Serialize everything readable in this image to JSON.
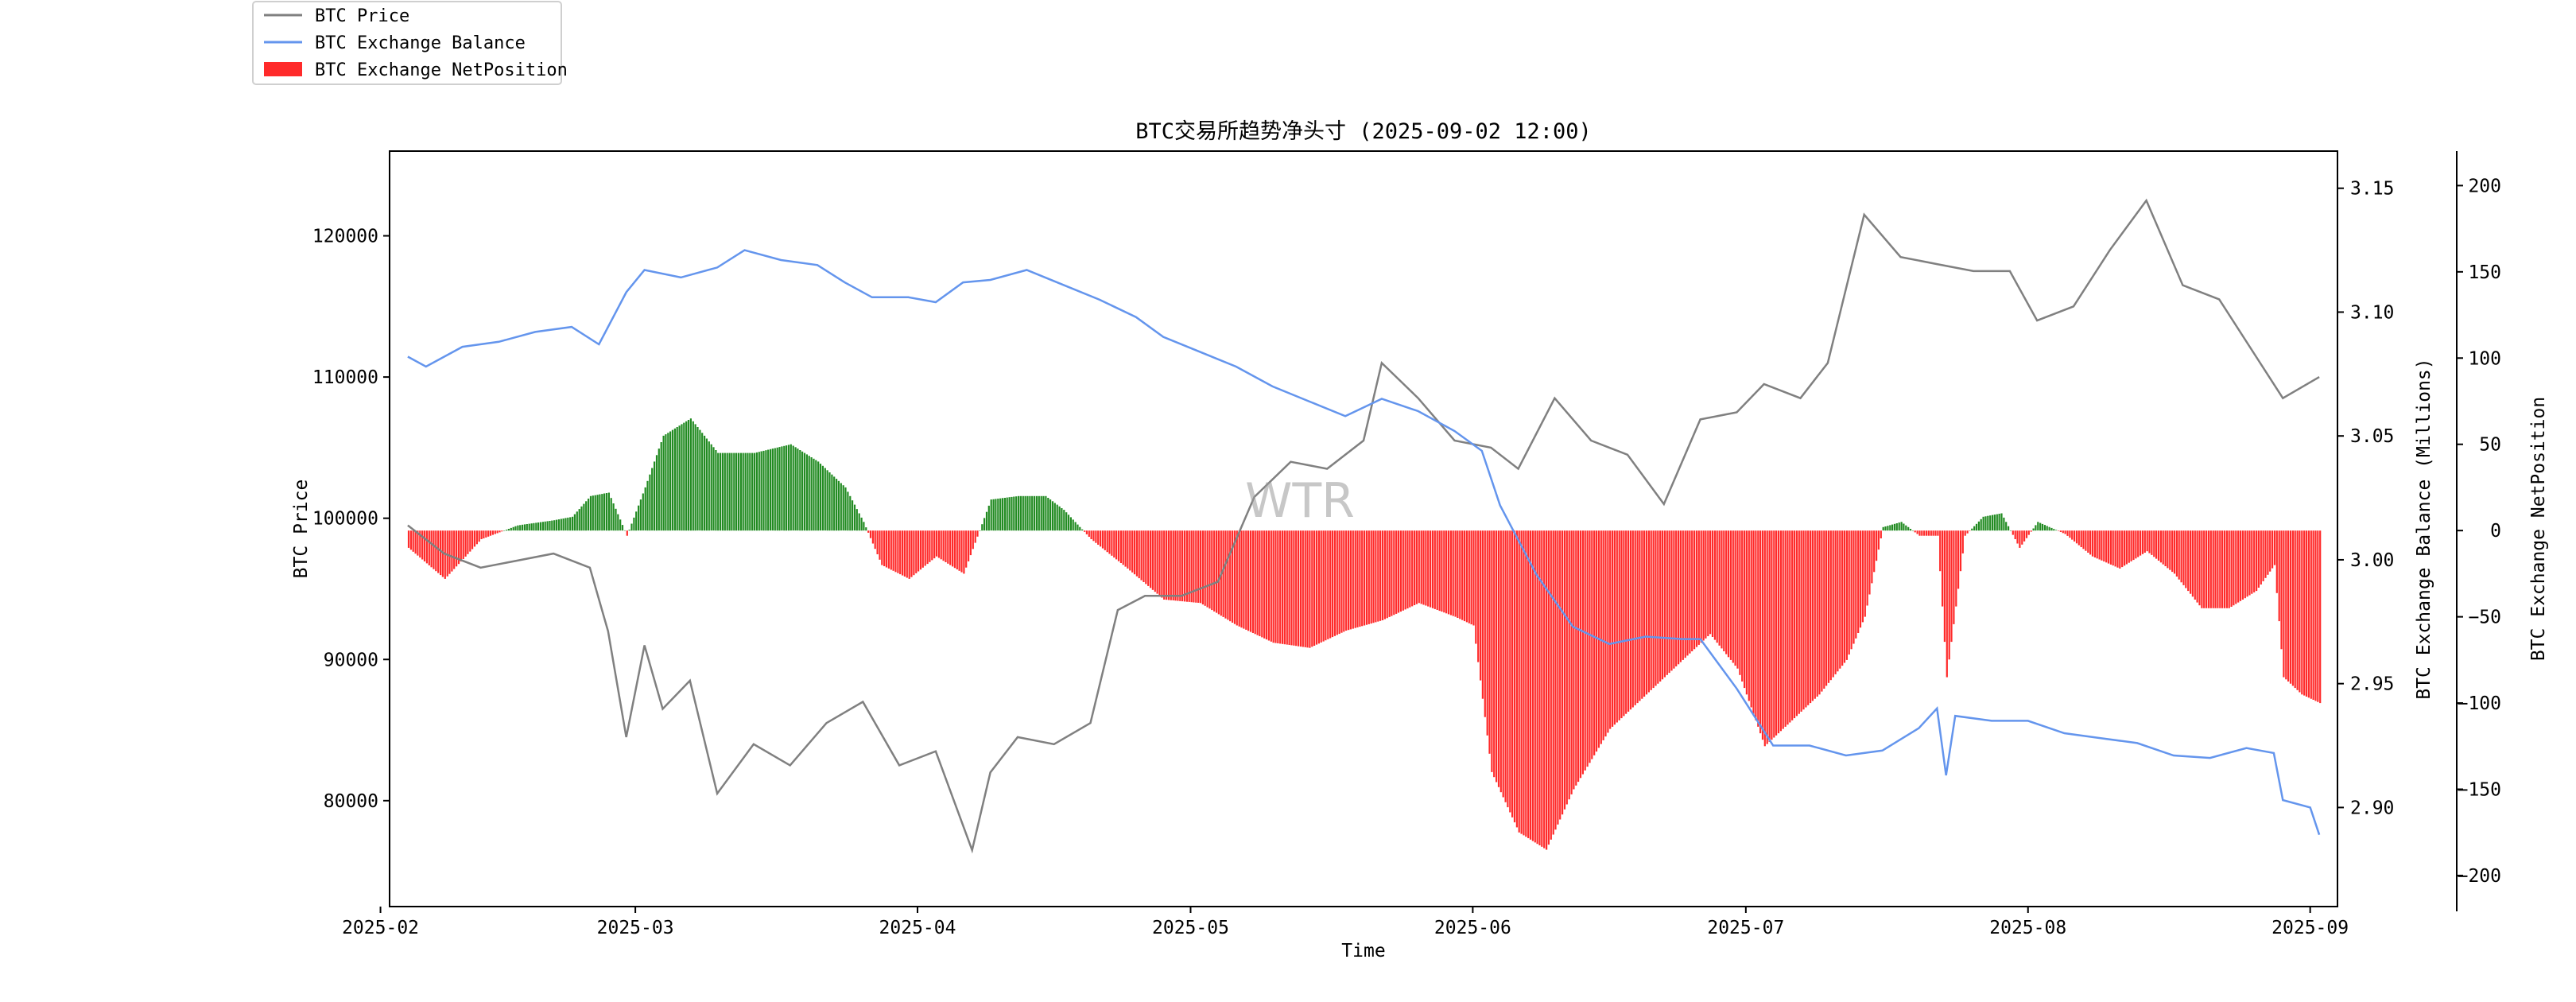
{
  "chart_data": {
    "type": "line",
    "title": "BTC交易所趋势净头寸 (2025-09-02 12:00)",
    "xlabel": "Time",
    "ylabel_left": "BTC Price",
    "ylabel_right": "BTC Exchange Balance (Millions)",
    "ylabel_right2": "BTC Exchange NetPosition",
    "watermark": "WTR",
    "grid": false,
    "legend_position": "top-left (outside plot)",
    "x_range": [
      "2025-02-04",
      "2025-09-02"
    ],
    "x_ticks": [
      "2025-02",
      "2025-03",
      "2025-04",
      "2025-05",
      "2025-06",
      "2025-07",
      "2025-08",
      "2025-09"
    ],
    "y_left_range": [
      72500,
      126000
    ],
    "y_left_ticks": [
      "80000",
      "90000",
      "100000",
      "110000",
      "120000"
    ],
    "y_right_range": [
      2.86,
      3.165
    ],
    "y_right_ticks": [
      "2.90",
      "2.95",
      "3.00",
      "3.05",
      "3.10",
      "3.15"
    ],
    "y_right2_range": [
      -218,
      220
    ],
    "y_right2_ticks": [
      "−200",
      "−150",
      "−100",
      "−50",
      "0",
      "50",
      "100",
      "150",
      "200"
    ],
    "series": [
      {
        "name": "BTC Price",
        "type": "line",
        "color": "#808080",
        "axis": "left",
        "x": [
          "2025-02-04",
          "2025-02-08",
          "2025-02-12",
          "2025-02-16",
          "2025-02-20",
          "2025-02-24",
          "2025-02-26",
          "2025-02-28",
          "2025-03-02",
          "2025-03-04",
          "2025-03-07",
          "2025-03-10",
          "2025-03-14",
          "2025-03-18",
          "2025-03-22",
          "2025-03-26",
          "2025-03-30",
          "2025-04-03",
          "2025-04-07",
          "2025-04-09",
          "2025-04-12",
          "2025-04-16",
          "2025-04-20",
          "2025-04-23",
          "2025-04-26",
          "2025-04-30",
          "2025-05-04",
          "2025-05-08",
          "2025-05-12",
          "2025-05-16",
          "2025-05-20",
          "2025-05-22",
          "2025-05-26",
          "2025-05-30",
          "2025-06-03",
          "2025-06-06",
          "2025-06-10",
          "2025-06-14",
          "2025-06-18",
          "2025-06-22",
          "2025-06-26",
          "2025-06-30",
          "2025-07-03",
          "2025-07-07",
          "2025-07-10",
          "2025-07-14",
          "2025-07-18",
          "2025-07-22",
          "2025-07-26",
          "2025-07-30",
          "2025-08-02",
          "2025-08-06",
          "2025-08-10",
          "2025-08-14",
          "2025-08-18",
          "2025-08-22",
          "2025-08-26",
          "2025-08-29",
          "2025-09-02"
        ],
        "values": [
          99500,
          97500,
          96500,
          97000,
          97500,
          96500,
          92000,
          84500,
          91000,
          86500,
          88500,
          80500,
          84000,
          82500,
          85500,
          87000,
          82500,
          83500,
          76500,
          82000,
          84500,
          84000,
          85500,
          93500,
          94500,
          94500,
          95500,
          101500,
          104000,
          103500,
          105500,
          111000,
          108500,
          105500,
          105000,
          103500,
          108500,
          105500,
          104500,
          101000,
          107000,
          107500,
          109500,
          108500,
          111000,
          121500,
          118500,
          118000,
          117500,
          117500,
          114000,
          115000,
          119000,
          122500,
          116500,
          115500,
          111500,
          108500,
          110000
        ]
      },
      {
        "name": "BTC Exchange Balance",
        "type": "line",
        "color": "#6495ed",
        "axis": "right",
        "x": [
          "2025-02-04",
          "2025-02-06",
          "2025-02-10",
          "2025-02-14",
          "2025-02-18",
          "2025-02-22",
          "2025-02-25",
          "2025-02-28",
          "2025-03-02",
          "2025-03-06",
          "2025-03-10",
          "2025-03-13",
          "2025-03-17",
          "2025-03-21",
          "2025-03-24",
          "2025-03-27",
          "2025-03-31",
          "2025-04-03",
          "2025-04-06",
          "2025-04-09",
          "2025-04-13",
          "2025-04-17",
          "2025-04-21",
          "2025-04-25",
          "2025-04-28",
          "2025-05-02",
          "2025-05-06",
          "2025-05-10",
          "2025-05-14",
          "2025-05-18",
          "2025-05-22",
          "2025-05-26",
          "2025-05-30",
          "2025-06-02",
          "2025-06-04",
          "2025-06-08",
          "2025-06-12",
          "2025-06-16",
          "2025-06-20",
          "2025-06-24",
          "2025-06-26",
          "2025-06-30",
          "2025-07-04",
          "2025-07-08",
          "2025-07-12",
          "2025-07-16",
          "2025-07-20",
          "2025-07-22",
          "2025-07-23",
          "2025-07-24",
          "2025-07-28",
          "2025-08-01",
          "2025-08-05",
          "2025-08-09",
          "2025-08-13",
          "2025-08-17",
          "2025-08-21",
          "2025-08-25",
          "2025-08-28",
          "2025-08-29",
          "2025-09-01",
          "2025-09-02"
        ],
        "values": [
          3.082,
          3.078,
          3.086,
          3.088,
          3.092,
          3.094,
          3.087,
          3.108,
          3.117,
          3.114,
          3.118,
          3.125,
          3.121,
          3.119,
          3.112,
          3.106,
          3.106,
          3.104,
          3.112,
          3.113,
          3.117,
          3.111,
          3.105,
          3.098,
          3.09,
          3.084,
          3.078,
          3.07,
          3.064,
          3.058,
          3.065,
          3.06,
          3.052,
          3.044,
          3.022,
          2.994,
          2.973,
          2.966,
          2.969,
          2.968,
          2.968,
          2.948,
          2.925,
          2.925,
          2.921,
          2.923,
          2.932,
          2.94,
          2.913,
          2.937,
          2.935,
          2.935,
          2.93,
          2.928,
          2.926,
          2.921,
          2.92,
          2.924,
          2.922,
          2.903,
          2.9,
          2.889
        ]
      },
      {
        "name": "BTC Exchange NetPosition",
        "type": "bar",
        "axis": "right2",
        "color_positive": "#228b22",
        "color_negative": "#ff2a2a",
        "x": [
          "2025-02-04",
          "2025-02-08",
          "2025-02-12",
          "2025-02-16",
          "2025-02-20",
          "2025-02-22",
          "2025-02-24",
          "2025-02-26",
          "2025-02-28",
          "2025-03-02",
          "2025-03-04",
          "2025-03-07",
          "2025-03-10",
          "2025-03-14",
          "2025-03-18",
          "2025-03-21",
          "2025-03-24",
          "2025-03-26",
          "2025-03-28",
          "2025-03-31",
          "2025-04-03",
          "2025-04-06",
          "2025-04-09",
          "2025-04-12",
          "2025-04-15",
          "2025-04-17",
          "2025-04-20",
          "2025-04-24",
          "2025-04-28",
          "2025-05-02",
          "2025-05-06",
          "2025-05-10",
          "2025-05-14",
          "2025-05-18",
          "2025-05-22",
          "2025-05-26",
          "2025-05-30",
          "2025-06-01",
          "2025-06-03",
          "2025-06-06",
          "2025-06-09",
          "2025-06-12",
          "2025-06-16",
          "2025-06-20",
          "2025-06-24",
          "2025-06-27",
          "2025-06-30",
          "2025-07-03",
          "2025-07-06",
          "2025-07-09",
          "2025-07-12",
          "2025-07-14",
          "2025-07-16",
          "2025-07-18",
          "2025-07-20",
          "2025-07-22",
          "2025-07-23",
          "2025-07-25",
          "2025-07-27",
          "2025-07-29",
          "2025-07-31",
          "2025-08-02",
          "2025-08-05",
          "2025-08-08",
          "2025-08-11",
          "2025-08-14",
          "2025-08-17",
          "2025-08-20",
          "2025-08-23",
          "2025-08-26",
          "2025-08-28",
          "2025-08-29",
          "2025-08-31",
          "2025-09-02"
        ],
        "values": [
          -10,
          -28,
          -5,
          3,
          6,
          8,
          20,
          22,
          -3,
          25,
          55,
          65,
          45,
          45,
          50,
          40,
          25,
          5,
          -20,
          -28,
          -15,
          -25,
          18,
          20,
          20,
          12,
          -5,
          -22,
          -40,
          -42,
          -55,
          -65,
          -68,
          -58,
          -52,
          -42,
          -50,
          -55,
          -140,
          -175,
          -185,
          -150,
          -115,
          -95,
          -75,
          -60,
          -80,
          -125,
          -110,
          -95,
          -75,
          -50,
          2,
          5,
          -3,
          -3,
          -85,
          -3,
          8,
          10,
          -10,
          5,
          -2,
          -15,
          -22,
          -12,
          -25,
          -45,
          -45,
          -35,
          -20,
          -85,
          -95,
          -100
        ]
      }
    ]
  }
}
